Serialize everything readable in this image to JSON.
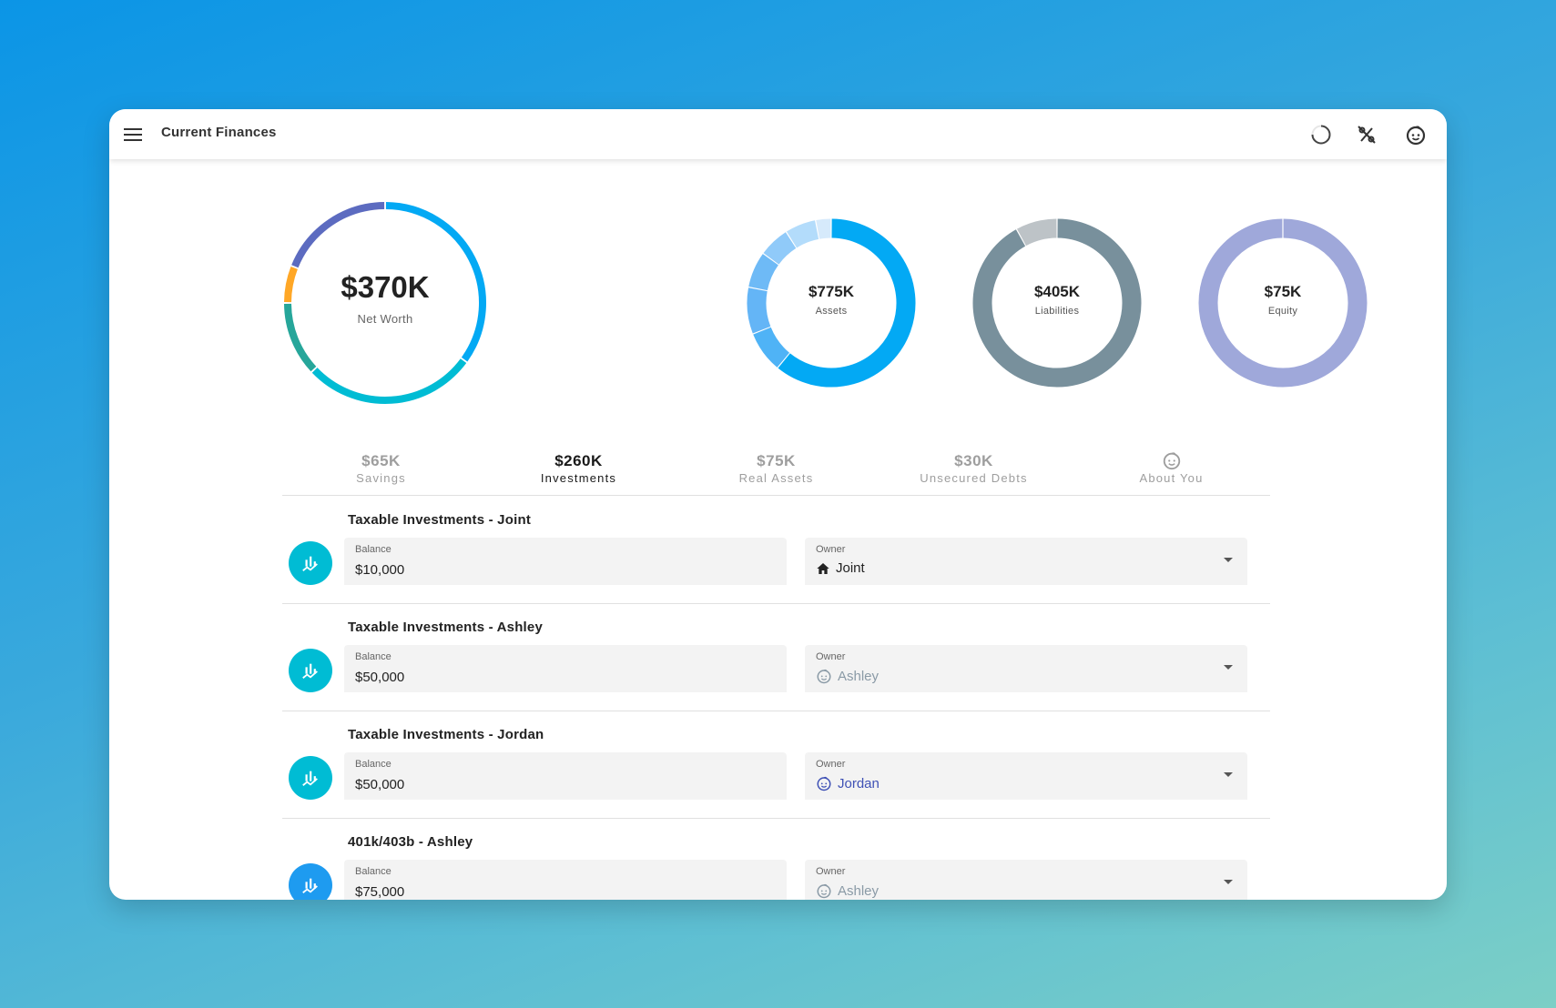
{
  "app": {
    "title": "Current Finances"
  },
  "summary": {
    "net_worth": {
      "value": "$370K",
      "label": "Net Worth"
    },
    "assets": {
      "value": "$775K",
      "label": "Assets"
    },
    "liabilities": {
      "value": "$405K",
      "label": "Liabilities"
    },
    "equity": {
      "value": "$75K",
      "label": "Equity"
    }
  },
  "tabs": [
    {
      "value": "$65K",
      "label": "Savings",
      "active": false
    },
    {
      "value": "$260K",
      "label": "Investments",
      "active": true
    },
    {
      "value": "$75K",
      "label": "Real Assets",
      "active": false
    },
    {
      "value": "$30K",
      "label": "Unsecured Debts",
      "active": false
    },
    {
      "value": "",
      "label": "About You",
      "icon": "baby-face-icon",
      "active": false
    }
  ],
  "accounts": [
    {
      "title": "Taxable Investments - Joint",
      "balance_label": "Balance",
      "balance": "$10,000",
      "owner_label": "Owner",
      "owner": "Joint",
      "owner_icon": "home-icon"
    },
    {
      "title": "Taxable Investments - Ashley",
      "balance_label": "Balance",
      "balance": "$50,000",
      "owner_label": "Owner",
      "owner": "Ashley",
      "owner_icon": "baby-face-icon"
    },
    {
      "title": "Taxable Investments - Jordan",
      "balance_label": "Balance",
      "balance": "$50,000",
      "owner_label": "Owner",
      "owner": "Jordan",
      "owner_icon": "baby-face-icon"
    },
    {
      "title": "401k/403b - Ashley",
      "balance_label": "Balance",
      "balance": "$75,000",
      "owner_label": "Owner",
      "owner": "Ashley",
      "owner_icon": "baby-face-icon"
    }
  ],
  "colors": {
    "accent_teal": "#00bcd4",
    "accent_blue": "#03a9f4",
    "liabilities": "#78909c",
    "equity": "#9fa8da",
    "jordan_text": "#3f51b5",
    "ashley_text": "#8a9aa6"
  },
  "chart_data": [
    {
      "type": "pie",
      "title": "Net Worth",
      "series": [
        {
          "color": "#03a9f4",
          "value": 35
        },
        {
          "color": "#00bcd4",
          "value": 28
        },
        {
          "color": "#26a69a",
          "value": 12
        },
        {
          "color": "#ffa726",
          "value": 6
        },
        {
          "color": "#5c6bc0",
          "value": 19
        }
      ]
    },
    {
      "type": "pie",
      "title": "Assets",
      "series": [
        {
          "color": "#03a9f4",
          "value": 61
        },
        {
          "color": "#4fb3f6",
          "value": 8
        },
        {
          "color": "#64b5f6",
          "value": 9
        },
        {
          "color": "#6ebaf6",
          "value": 7
        },
        {
          "color": "#90caf9",
          "value": 6
        },
        {
          "color": "#b3dcfb",
          "value": 6
        },
        {
          "color": "#d6eafb",
          "value": 3
        }
      ]
    },
    {
      "type": "pie",
      "title": "Liabilities",
      "series": [
        {
          "color": "#78909c",
          "value": 92
        },
        {
          "color": "#bdc3c7",
          "value": 8
        }
      ]
    },
    {
      "type": "pie",
      "title": "Equity",
      "series": [
        {
          "color": "#9fa8da",
          "value": 100
        }
      ]
    }
  ]
}
